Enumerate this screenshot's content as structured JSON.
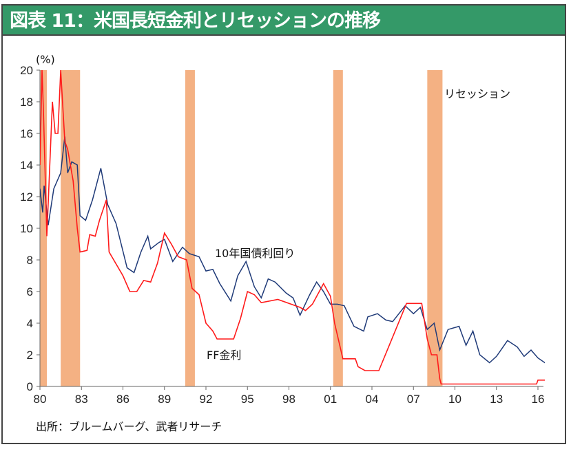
{
  "title": "図表 11：米国長短金利とリセッションの推移",
  "source": "出所：ブルームバーグ、武者リサーチ",
  "chart_data": {
    "type": "line",
    "title": "図表 11：米国長短金利とリセッションの推移",
    "ylabel": "(%)",
    "ylim": [
      0,
      20
    ],
    "yticks": [
      0,
      2,
      4,
      6,
      8,
      10,
      12,
      14,
      16,
      18,
      20
    ],
    "xlim": [
      1980,
      2016.7
    ],
    "xticks": [
      1980,
      1983,
      1986,
      1989,
      1992,
      1995,
      1998,
      2001,
      2004,
      2007,
      2010,
      2013,
      2016
    ],
    "xtick_labels": [
      "80",
      "83",
      "86",
      "89",
      "92",
      "95",
      "98",
      "01",
      "04",
      "07",
      "10",
      "13",
      "16"
    ],
    "grid": false,
    "colors": {
      "yield10": "#1f3a78",
      "ff": "#ff1a1a",
      "recession": "#f4b183",
      "title_bg": "#349968"
    },
    "recession_label": "リセッション",
    "recessions": [
      [
        1980.0,
        1980.5
      ],
      [
        1981.5,
        1982.9
      ],
      [
        1990.5,
        1991.2
      ],
      [
        2001.2,
        2001.9
      ],
      [
        2008.0,
        2009.1
      ]
    ],
    "series": [
      {
        "name": "10年国債利回り",
        "key": "yield10",
        "x": [
          1980.0,
          1980.2,
          1980.3,
          1980.6,
          1981.0,
          1981.5,
          1981.8,
          1982.0,
          1982.3,
          1982.7,
          1982.9,
          1983.3,
          1983.8,
          1984.4,
          1984.9,
          1985.5,
          1986.3,
          1986.8,
          1987.3,
          1987.8,
          1988.0,
          1988.6,
          1989.0,
          1989.6,
          1990.3,
          1990.8,
          1991.5,
          1992.0,
          1992.5,
          1993.0,
          1993.8,
          1994.3,
          1994.9,
          1995.5,
          1996.0,
          1996.5,
          1997.0,
          1997.8,
          1998.3,
          1998.8,
          1999.5,
          2000.0,
          2000.5,
          2001.0,
          2001.5,
          2002.0,
          2002.7,
          2003.4,
          2003.7,
          2004.4,
          2005.0,
          2005.5,
          2006.4,
          2007.0,
          2007.5,
          2008.0,
          2008.5,
          2008.9,
          2009.5,
          2010.3,
          2010.8,
          2011.3,
          2011.8,
          2012.5,
          2013.0,
          2013.8,
          2014.5,
          2015.0,
          2015.5,
          2016.0,
          2016.5,
          2016.7
        ],
        "y": [
          12.5,
          11.0,
          12.7,
          10.2,
          12.5,
          13.5,
          15.8,
          13.5,
          14.2,
          14.0,
          10.8,
          10.5,
          11.8,
          13.8,
          11.5,
          10.3,
          7.5,
          7.2,
          8.5,
          9.5,
          8.7,
          9.1,
          9.3,
          7.9,
          8.8,
          8.4,
          8.2,
          7.3,
          7.4,
          6.5,
          5.4,
          7.0,
          7.9,
          6.3,
          5.6,
          6.8,
          6.6,
          5.9,
          5.6,
          4.5,
          5.8,
          6.6,
          6.0,
          5.2,
          5.2,
          5.1,
          3.8,
          3.5,
          4.4,
          4.6,
          4.2,
          4.1,
          5.1,
          4.6,
          5.0,
          3.6,
          4.0,
          2.3,
          3.6,
          3.8,
          2.6,
          3.5,
          2.0,
          1.5,
          1.9,
          2.9,
          2.5,
          1.9,
          2.3,
          1.8,
          1.5,
          1.6
        ]
      },
      {
        "name": "FF金利",
        "key": "ff",
        "x": [
          1980.0,
          1980.15,
          1980.25,
          1980.5,
          1980.9,
          1981.1,
          1981.3,
          1981.5,
          1981.8,
          1982.0,
          1982.4,
          1982.7,
          1982.9,
          1983.4,
          1983.6,
          1984.0,
          1984.3,
          1984.8,
          1985.0,
          1986.0,
          1986.5,
          1987.0,
          1987.5,
          1988.0,
          1988.5,
          1989.0,
          1989.5,
          1990.0,
          1990.6,
          1991.0,
          1991.5,
          1992.0,
          1992.5,
          1992.8,
          1994.0,
          1994.5,
          1995.0,
          1995.5,
          1996.0,
          1997.2,
          1998.8,
          1999.2,
          1999.7,
          2000.5,
          2001.0,
          2001.3,
          2001.9,
          2002.8,
          2003.0,
          2003.5,
          2004.5,
          2006.5,
          2007.6,
          2008.0,
          2008.3,
          2008.7,
          2008.9,
          2009.0,
          2015.9,
          2016.0,
          2016.7
        ],
        "y": [
          14.0,
          20.0,
          17.5,
          9.5,
          18.0,
          16.0,
          16.0,
          20.0,
          15.5,
          15.0,
          13.0,
          10.0,
          8.5,
          8.6,
          9.6,
          9.5,
          10.5,
          11.8,
          8.5,
          7.0,
          6.0,
          6.0,
          6.7,
          6.6,
          7.8,
          9.7,
          9.0,
          8.2,
          8.0,
          6.2,
          5.8,
          4.0,
          3.5,
          3.0,
          3.0,
          4.3,
          6.0,
          5.8,
          5.3,
          5.5,
          5.0,
          4.8,
          5.2,
          6.5,
          5.7,
          4.0,
          1.75,
          1.75,
          1.25,
          1.0,
          1.0,
          5.25,
          5.25,
          3.0,
          2.0,
          2.0,
          0.5,
          0.15,
          0.15,
          0.4,
          0.4
        ]
      }
    ]
  }
}
